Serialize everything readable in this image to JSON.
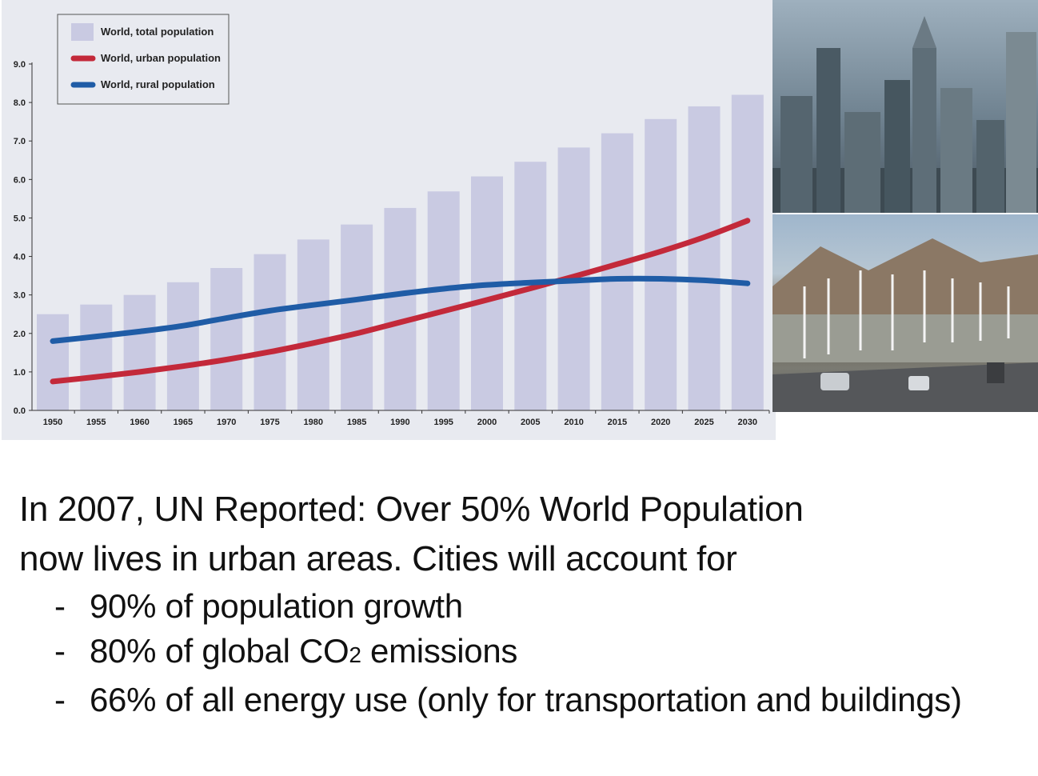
{
  "chart_data": {
    "type": "bar",
    "categories": [
      "1950",
      "1955",
      "1960",
      "1965",
      "1970",
      "1975",
      "1980",
      "1985",
      "1990",
      "1995",
      "2000",
      "2005",
      "2010",
      "2015",
      "2020",
      "2025",
      "2030"
    ],
    "series": [
      {
        "name": "World, total population",
        "kind": "bar",
        "color": "#c9cae2",
        "values": [
          2.5,
          2.75,
          3.0,
          3.33,
          3.7,
          4.06,
          4.44,
          4.83,
          5.26,
          5.69,
          6.08,
          6.46,
          6.83,
          7.2,
          7.57,
          7.9,
          8.2
        ]
      },
      {
        "name": "World, urban population",
        "kind": "line",
        "color": "#c3293a",
        "values": [
          0.75,
          0.87,
          1.0,
          1.15,
          1.32,
          1.52,
          1.75,
          2.0,
          2.29,
          2.58,
          2.87,
          3.17,
          3.48,
          3.8,
          4.13,
          4.5,
          4.93
        ]
      },
      {
        "name": "World, rural population",
        "kind": "line",
        "color": "#1f5ca6",
        "values": [
          1.8,
          1.92,
          2.05,
          2.2,
          2.4,
          2.59,
          2.74,
          2.88,
          3.03,
          3.16,
          3.26,
          3.32,
          3.37,
          3.42,
          3.42,
          3.38,
          3.3
        ]
      }
    ],
    "yticks": [
      "0.0",
      "1.0",
      "2.0",
      "3.0",
      "4.0",
      "5.0",
      "6.0",
      "7.0",
      "8.0",
      "9.0"
    ],
    "ylim": [
      0,
      9
    ],
    "legend_position": "top-left",
    "grid": false
  },
  "photos": {
    "top": "city-skyline-smog",
    "bottom": "wind-farm-highway"
  },
  "slide": {
    "headline_line1": "In 2007, UN Reported: Over 50% World Population",
    "headline_line2": "now lives in urban areas. Cities will account for",
    "bullets": [
      {
        "dash": "-",
        "text": "90% of population growth"
      },
      {
        "dash": "-",
        "text_before": "80% of global CO",
        "sub": "2",
        "text_after": " emissions"
      },
      {
        "dash": "-",
        "text": "66% of all energy use (only for transportation and buildings)"
      }
    ]
  }
}
